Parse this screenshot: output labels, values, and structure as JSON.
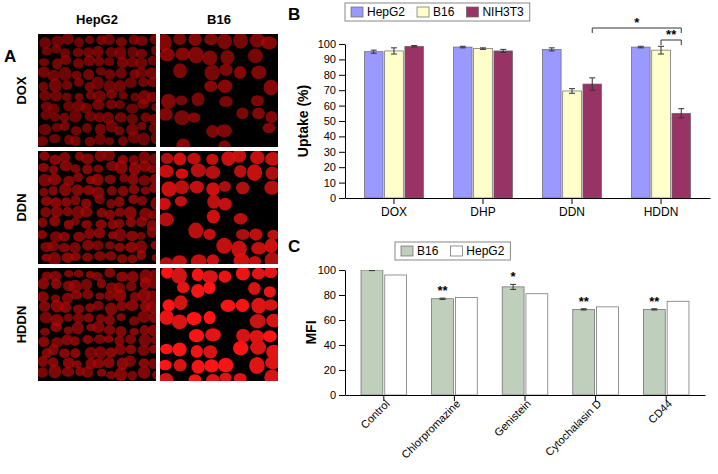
{
  "image_panel": {
    "label": "A",
    "columns": [
      "HepG2",
      "B16"
    ],
    "rows": [
      "DOX",
      "DDN",
      "HDDN"
    ]
  },
  "chart_data": [
    {
      "type": "bar",
      "title": "B",
      "y_label": "Uptake (%)",
      "categories": [
        "DOX",
        "DHP",
        "DDN",
        "HDDN"
      ],
      "series": [
        {
          "name": "HepG2",
          "color": "#9999ff",
          "values": [
            95,
            98,
            96.5,
            98
          ],
          "errors": [
            1,
            0.5,
            1,
            0.5
          ]
        },
        {
          "name": "B16",
          "color": "#ffffcc",
          "values": [
            95.5,
            97,
            69.5,
            96
          ],
          "errors": [
            2,
            0.5,
            1.5,
            2.5
          ]
        },
        {
          "name": "NIH3T3",
          "color": "#993366",
          "values": [
            98.5,
            95.5,
            74,
            55
          ],
          "errors": [
            0.5,
            1,
            4,
            3
          ]
        }
      ],
      "ylim": [
        0,
        100
      ],
      "yticks": [
        0,
        10,
        20,
        30,
        40,
        50,
        60,
        70,
        80,
        90,
        100
      ],
      "grid": false,
      "legend": "top",
      "annotations": [
        "*",
        "**"
      ]
    },
    {
      "type": "bar",
      "title": "C",
      "y_label": "MFI",
      "categories": [
        "Control",
        "Chlorpromazine",
        "Genistein",
        "Cytochalasin D",
        "CD44"
      ],
      "series": [
        {
          "name": "B16",
          "color": "#bfcfbb",
          "values": [
            100,
            77,
            86.5,
            68.5,
            68.5
          ],
          "errors": [
            0.5,
            0.5,
            2,
            0.5,
            0.5
          ]
        },
        {
          "name": "HepG2",
          "color": "#ffffff",
          "values": [
            96,
            78,
            81,
            70.5,
            75
          ]
        }
      ],
      "ylim": [
        0,
        100
      ],
      "yticks": [
        0,
        20,
        40,
        60,
        80,
        100
      ],
      "grid": false,
      "legend": "top",
      "annotations": [
        null,
        "**",
        "*",
        "**",
        "**"
      ]
    }
  ]
}
